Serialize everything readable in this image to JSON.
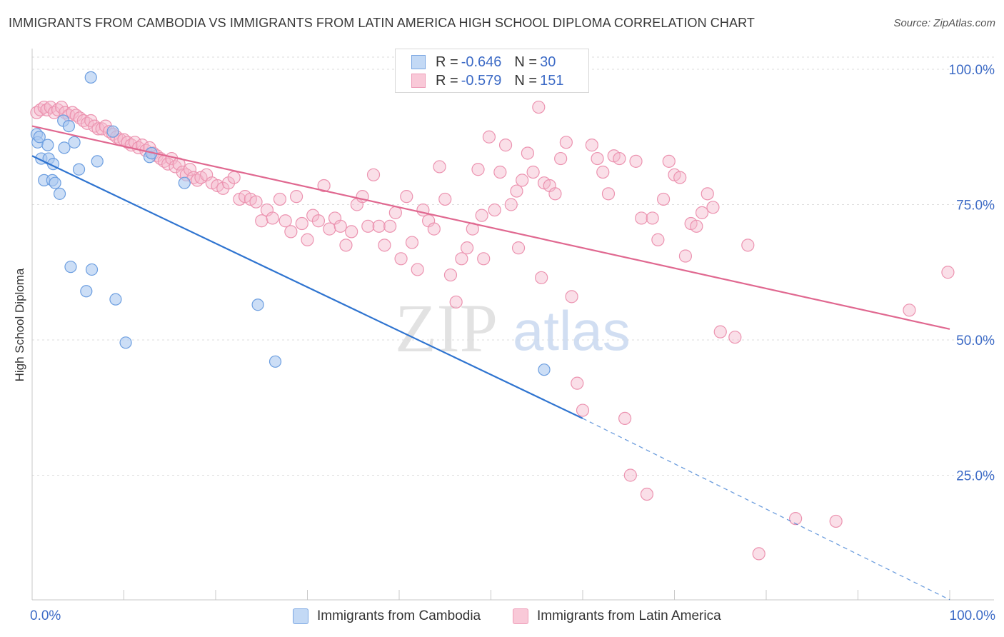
{
  "header": {
    "title": "IMMIGRANTS FROM CAMBODIA VS IMMIGRANTS FROM LATIN AMERICA HIGH SCHOOL DIPLOMA CORRELATION CHART",
    "source": "Source: ZipAtlas.com"
  },
  "legend": {
    "items": [
      {
        "r_label": "R =",
        "r_value": "-0.646",
        "n_label": "N =",
        "n_value": "30"
      },
      {
        "r_label": "R =",
        "r_value": "-0.579",
        "n_label": "N =",
        "n_value": "151"
      }
    ]
  },
  "watermark": {
    "zip": "ZIP",
    "atlas": "atlas"
  },
  "colors": {
    "blue_fill": "#aac8f0",
    "blue_stroke": "#6c9ee0",
    "blue_line": "#2f74d0",
    "pink_fill": "#f5b8cc",
    "pink_stroke": "#ec93b0",
    "pink_line": "#e06890",
    "tick_text": "#3d6bc6"
  },
  "chart_data": {
    "type": "scatter",
    "title": "IMMIGRANTS FROM CAMBODIA VS IMMIGRANTS FROM LATIN AMERICA HIGH SCHOOL DIPLOMA CORRELATION CHART",
    "xlabel": "",
    "ylabel": "High School Diploma",
    "xlim": [
      0,
      100
    ],
    "ylim": [
      0,
      105
    ],
    "x_tick_labels": [
      "0.0%",
      "100.0%"
    ],
    "y_ticks": [
      25,
      50,
      75,
      100
    ],
    "y_tick_labels": [
      "25.0%",
      "50.0%",
      "75.0%",
      "100.0%"
    ],
    "grid": true,
    "series": [
      {
        "name": "Immigrants from Cambodia",
        "r": -0.646,
        "n": 30,
        "trend": {
          "x_start": 0,
          "y_start": 84.0,
          "x_end": 60,
          "y_end": 35.5,
          "dashed_to_x": 100,
          "dashed_to_y": 2.0
        },
        "points": [
          [
            6.4,
            98.5
          ],
          [
            0.5,
            88.0
          ],
          [
            0.6,
            86.5
          ],
          [
            0.8,
            87.5
          ],
          [
            1.7,
            86.0
          ],
          [
            1.0,
            83.5
          ],
          [
            1.8,
            83.5
          ],
          [
            2.3,
            82.5
          ],
          [
            3.4,
            90.5
          ],
          [
            4.0,
            89.5
          ],
          [
            4.6,
            86.5
          ],
          [
            3.5,
            85.5
          ],
          [
            5.1,
            81.5
          ],
          [
            7.1,
            83.0
          ],
          [
            8.8,
            88.5
          ],
          [
            12.8,
            83.8
          ],
          [
            13.0,
            84.5
          ],
          [
            16.6,
            79.0
          ],
          [
            1.3,
            79.5
          ],
          [
            2.2,
            79.5
          ],
          [
            2.5,
            79.0
          ],
          [
            3.0,
            77.0
          ],
          [
            4.2,
            63.5
          ],
          [
            6.5,
            63.0
          ],
          [
            5.9,
            59.0
          ],
          [
            9.1,
            57.5
          ],
          [
            10.2,
            49.5
          ],
          [
            24.6,
            56.5
          ],
          [
            26.5,
            46.0
          ],
          [
            55.8,
            44.5
          ]
        ]
      },
      {
        "name": "Immigrants from Latin America",
        "r": -0.579,
        "n": 151,
        "trend": {
          "x_start": 0,
          "y_start": 89.5,
          "x_end": 100,
          "y_end": 52.0
        },
        "points": [
          [
            0.5,
            92.0
          ],
          [
            0.9,
            92.5
          ],
          [
            1.3,
            93.0
          ],
          [
            1.6,
            92.5
          ],
          [
            2.0,
            93.0
          ],
          [
            2.4,
            92.0
          ],
          [
            2.8,
            92.5
          ],
          [
            3.2,
            93.0
          ],
          [
            3.6,
            92.0
          ],
          [
            4.0,
            91.5
          ],
          [
            4.4,
            92.0
          ],
          [
            4.8,
            91.5
          ],
          [
            5.2,
            91.0
          ],
          [
            5.6,
            90.5
          ],
          [
            6.0,
            90.0
          ],
          [
            6.4,
            90.5
          ],
          [
            6.8,
            89.5
          ],
          [
            7.2,
            89.0
          ],
          [
            7.6,
            89.0
          ],
          [
            8.0,
            89.5
          ],
          [
            8.4,
            88.5
          ],
          [
            8.8,
            88.0
          ],
          [
            9.2,
            87.5
          ],
          [
            9.6,
            87.0
          ],
          [
            10.0,
            87.0
          ],
          [
            10.4,
            86.5
          ],
          [
            10.8,
            86.0
          ],
          [
            11.2,
            86.5
          ],
          [
            11.6,
            85.5
          ],
          [
            12.0,
            86.0
          ],
          [
            12.4,
            85.0
          ],
          [
            12.8,
            85.5
          ],
          [
            13.2,
            84.5
          ],
          [
            13.6,
            84.0
          ],
          [
            14.0,
            83.5
          ],
          [
            14.4,
            83.0
          ],
          [
            14.8,
            82.5
          ],
          [
            15.2,
            83.5
          ],
          [
            15.6,
            82.0
          ],
          [
            16.0,
            82.5
          ],
          [
            16.4,
            81.0
          ],
          [
            16.8,
            80.5
          ],
          [
            17.2,
            81.5
          ],
          [
            17.6,
            80.0
          ],
          [
            18.0,
            79.5
          ],
          [
            18.4,
            80.0
          ],
          [
            19.0,
            80.5
          ],
          [
            19.6,
            79.0
          ],
          [
            20.2,
            78.5
          ],
          [
            20.8,
            78.0
          ],
          [
            21.4,
            79.0
          ],
          [
            22.0,
            80.0
          ],
          [
            22.6,
            76.0
          ],
          [
            23.2,
            76.5
          ],
          [
            23.8,
            76.0
          ],
          [
            24.4,
            75.5
          ],
          [
            25.0,
            72.0
          ],
          [
            25.6,
            74.0
          ],
          [
            26.2,
            72.5
          ],
          [
            27.0,
            76.0
          ],
          [
            27.6,
            72.0
          ],
          [
            28.2,
            70.0
          ],
          [
            28.8,
            76.5
          ],
          [
            29.4,
            71.5
          ],
          [
            30.0,
            68.5
          ],
          [
            30.6,
            73.0
          ],
          [
            31.2,
            72.0
          ],
          [
            31.8,
            78.5
          ],
          [
            32.4,
            70.5
          ],
          [
            33.0,
            72.5
          ],
          [
            33.6,
            71.0
          ],
          [
            34.2,
            67.5
          ],
          [
            34.8,
            70.0
          ],
          [
            35.4,
            75.0
          ],
          [
            36.0,
            76.5
          ],
          [
            36.6,
            71.0
          ],
          [
            37.2,
            80.5
          ],
          [
            37.8,
            71.0
          ],
          [
            38.4,
            67.5
          ],
          [
            39.0,
            71.0
          ],
          [
            39.6,
            73.5
          ],
          [
            40.2,
            65.0
          ],
          [
            40.8,
            76.5
          ],
          [
            41.4,
            68.0
          ],
          [
            42.0,
            63.0
          ],
          [
            42.6,
            74.0
          ],
          [
            43.2,
            72.0
          ],
          [
            43.8,
            70.5
          ],
          [
            44.4,
            82.0
          ],
          [
            45.0,
            76.0
          ],
          [
            45.6,
            62.0
          ],
          [
            46.2,
            57.0
          ],
          [
            46.8,
            65.0
          ],
          [
            47.4,
            67.0
          ],
          [
            48.0,
            70.5
          ],
          [
            48.6,
            81.5
          ],
          [
            49.2,
            65.0
          ],
          [
            49.8,
            87.5
          ],
          [
            50.4,
            74.0
          ],
          [
            51.0,
            81.0
          ],
          [
            51.6,
            86.0
          ],
          [
            52.2,
            75.0
          ],
          [
            52.8,
            77.5
          ],
          [
            53.4,
            79.5
          ],
          [
            54.0,
            84.5
          ],
          [
            54.6,
            81.0
          ],
          [
            55.2,
            93.0
          ],
          [
            55.8,
            79.0
          ],
          [
            56.4,
            78.5
          ],
          [
            57.0,
            77.0
          ],
          [
            57.6,
            83.5
          ],
          [
            58.2,
            86.5
          ],
          [
            58.8,
            58.0
          ],
          [
            59.4,
            42.0
          ],
          [
            60.0,
            37.0
          ],
          [
            61.0,
            86.0
          ],
          [
            61.6,
            83.5
          ],
          [
            62.2,
            81.0
          ],
          [
            62.8,
            77.0
          ],
          [
            63.4,
            84.0
          ],
          [
            64.0,
            83.5
          ],
          [
            64.6,
            35.5
          ],
          [
            65.2,
            25.0
          ],
          [
            65.8,
            83.0
          ],
          [
            66.4,
            72.5
          ],
          [
            67.0,
            21.5
          ],
          [
            67.6,
            72.5
          ],
          [
            68.2,
            68.5
          ],
          [
            68.8,
            76.0
          ],
          [
            69.4,
            83.0
          ],
          [
            70.0,
            80.5
          ],
          [
            70.6,
            80.0
          ],
          [
            71.2,
            65.5
          ],
          [
            71.8,
            71.5
          ],
          [
            72.4,
            71.0
          ],
          [
            73.0,
            73.5
          ],
          [
            73.6,
            77.0
          ],
          [
            74.2,
            74.5
          ],
          [
            75.0,
            51.5
          ],
          [
            76.6,
            50.5
          ],
          [
            78.0,
            67.5
          ],
          [
            79.2,
            10.5
          ],
          [
            83.2,
            17.0
          ],
          [
            87.6,
            16.5
          ],
          [
            95.6,
            55.5
          ],
          [
            99.8,
            62.5
          ],
          [
            55.5,
            61.5
          ],
          [
            49.0,
            73.0
          ],
          [
            53.0,
            67.0
          ]
        ]
      }
    ]
  },
  "bottom_legend": {
    "series1": "Immigrants from Cambodia",
    "series2": "Immigrants from Latin America",
    "x_min_label": "0.0%",
    "x_max_label": "100.0%"
  }
}
